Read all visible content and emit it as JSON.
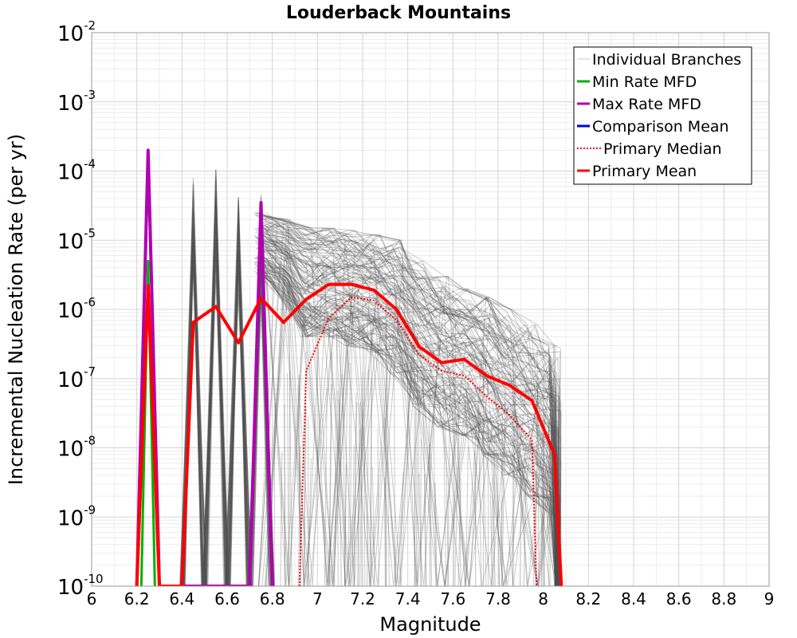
{
  "chart_data": {
    "type": "line",
    "title": "Louderback Mountains",
    "xlabel": "Magnitude",
    "ylabel": "Incremental Nucleation Rate (per yr)",
    "xlim": [
      6,
      9
    ],
    "ylim": [
      1e-10,
      0.01
    ],
    "y_scale": "log",
    "x_ticks": [
      "6",
      "6.2",
      "6.4",
      "6.6",
      "6.8",
      "7",
      "7.2",
      "7.4",
      "7.6",
      "7.8",
      "8",
      "8.2",
      "8.4",
      "8.6",
      "8.8",
      "9"
    ],
    "y_ticks": [
      {
        "base": "10",
        "exp": "-2"
      },
      {
        "base": "10",
        "exp": "-3"
      },
      {
        "base": "10",
        "exp": "-4"
      },
      {
        "base": "10",
        "exp": "-5"
      },
      {
        "base": "10",
        "exp": "-6"
      },
      {
        "base": "10",
        "exp": "-7"
      },
      {
        "base": "10",
        "exp": "-8"
      },
      {
        "base": "10",
        "exp": "-9"
      },
      {
        "base": "10",
        "exp": "-10"
      }
    ],
    "grid": true,
    "legend_position": "top-right",
    "legend": [
      {
        "label": "Individual Branches",
        "color": "#c8c8c8",
        "style": "solid"
      },
      {
        "label": "Min Rate MFD",
        "color": "#00b000",
        "style": "solid"
      },
      {
        "label": "Max Rate MFD",
        "color": "#b000b0",
        "style": "solid"
      },
      {
        "label": "Comparison Mean",
        "color": "#0000dd",
        "style": "solid"
      },
      {
        "label": "Primary Median",
        "color": "#ff0000",
        "style": "dotted"
      },
      {
        "label": "Primary Mean",
        "color": "#ff0000",
        "style": "solid"
      }
    ],
    "series": [
      {
        "name": "Primary Mean",
        "color": "#ff0000",
        "x": [
          6.2,
          6.25,
          6.3,
          6.4,
          6.45,
          6.55,
          6.65,
          6.75,
          6.85,
          6.95,
          7.05,
          7.15,
          7.25,
          7.35,
          7.45,
          7.55,
          7.65,
          7.75,
          7.85,
          7.95,
          8.05,
          8.08
        ],
        "y": [
          1e-10,
          2.2e-06,
          1e-10,
          1e-10,
          6.5e-07,
          1.1e-06,
          3.3e-07,
          1.45e-06,
          6.5e-07,
          1.4e-06,
          2.3e-06,
          2.3e-06,
          1.9e-06,
          1e-06,
          2.9e-07,
          1.7e-07,
          1.9e-07,
          1.1e-07,
          8e-08,
          4.8e-08,
          8e-09,
          1e-10
        ]
      },
      {
        "name": "Primary Median",
        "color": "#ff0000",
        "x": [
          6.92,
          6.95,
          7.05,
          7.15,
          7.25,
          7.35,
          7.45,
          7.55,
          7.65,
          7.75,
          7.85,
          7.95,
          7.97
        ],
        "y": [
          1e-10,
          1.3e-07,
          7.5e-07,
          1.5e-06,
          1.35e-06,
          7e-07,
          2.2e-07,
          1.3e-07,
          1.1e-07,
          5.5e-08,
          3e-08,
          1.3e-08,
          1e-10
        ]
      },
      {
        "name": "Max Rate MFD",
        "color": "#b000b0",
        "x": [
          6.2,
          6.25,
          6.3,
          6.7,
          6.75,
          6.8
        ],
        "y": [
          1e-10,
          0.0002,
          1e-10,
          1e-10,
          3.5e-05,
          1e-10
        ]
      },
      {
        "name": "Min Rate MFD",
        "color": "#00b000",
        "x": [
          6.22,
          6.25,
          6.28
        ],
        "y": [
          1e-10,
          5e-06,
          1e-10
        ]
      }
    ],
    "branch_envelope": {
      "name": "Individual Branches",
      "color": "#555555",
      "spikes": [
        {
          "x": 6.45,
          "y": 0.00012
        },
        {
          "x": 6.55,
          "y": 0.00011
        },
        {
          "x": 6.65,
          "y": 6e-05
        },
        {
          "x": 6.75,
          "y": 5e-05
        }
      ],
      "upper": {
        "x": [
          6.75,
          6.85,
          6.95,
          7.05,
          7.15,
          7.25,
          7.35,
          7.45,
          7.55,
          7.65,
          7.75,
          7.85,
          7.95,
          8.05
        ],
        "y": [
          2.5e-05,
          2e-05,
          1.5e-05,
          1.5e-05,
          1.4e-05,
          1.2e-05,
          1e-05,
          5e-06,
          3e-06,
          2e-06,
          1.5e-06,
          1e-06,
          6e-07,
          3e-07
        ]
      },
      "lower": {
        "x": [
          6.75,
          6.85,
          6.95,
          7.05,
          7.15,
          7.25,
          7.35,
          7.45,
          7.55,
          7.65,
          7.75,
          7.85,
          7.95,
          8.05
        ],
        "y": [
          3e-06,
          1.5e-06,
          4e-07,
          4e-07,
          3e-07,
          2.5e-07,
          1.2e-07,
          4e-08,
          2e-08,
          1.5e-08,
          8e-09,
          4e-09,
          2e-09,
          1e-09
        ]
      }
    }
  }
}
